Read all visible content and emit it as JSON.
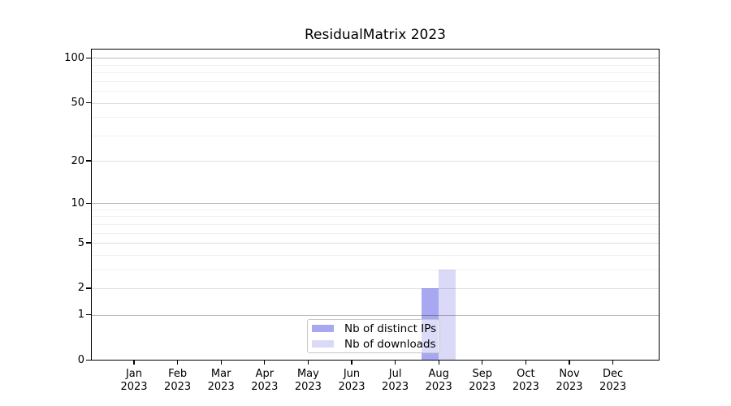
{
  "chart_data": {
    "type": "bar",
    "title": "ResidualMatrix 2023",
    "categories": [
      "Jan",
      "Feb",
      "Mar",
      "Apr",
      "May",
      "Jun",
      "Jul",
      "Aug",
      "Sep",
      "Oct",
      "Nov",
      "Dec"
    ],
    "category_year": "2023",
    "series": [
      {
        "name": "Nb of distinct IPs",
        "color": "#a8a8f2",
        "values": [
          0,
          0,
          0,
          0,
          0,
          0,
          0,
          2,
          0,
          0,
          0,
          0
        ]
      },
      {
        "name": "Nb of downloads",
        "color": "#dadaf8",
        "values": [
          0,
          0,
          0,
          0,
          0,
          0,
          0,
          3,
          0,
          0,
          0,
          0
        ]
      }
    ],
    "yscale": "log1p",
    "ylim": [
      0,
      114
    ],
    "yticks": [
      0,
      1,
      2,
      5,
      10,
      20,
      50,
      100
    ],
    "yticks_minor": [
      3,
      4,
      6,
      7,
      8,
      9,
      30,
      40,
      60,
      70,
      80,
      90
    ],
    "grid": "on",
    "legend_position": "inside lower center",
    "xlabel": "",
    "ylabel": ""
  }
}
